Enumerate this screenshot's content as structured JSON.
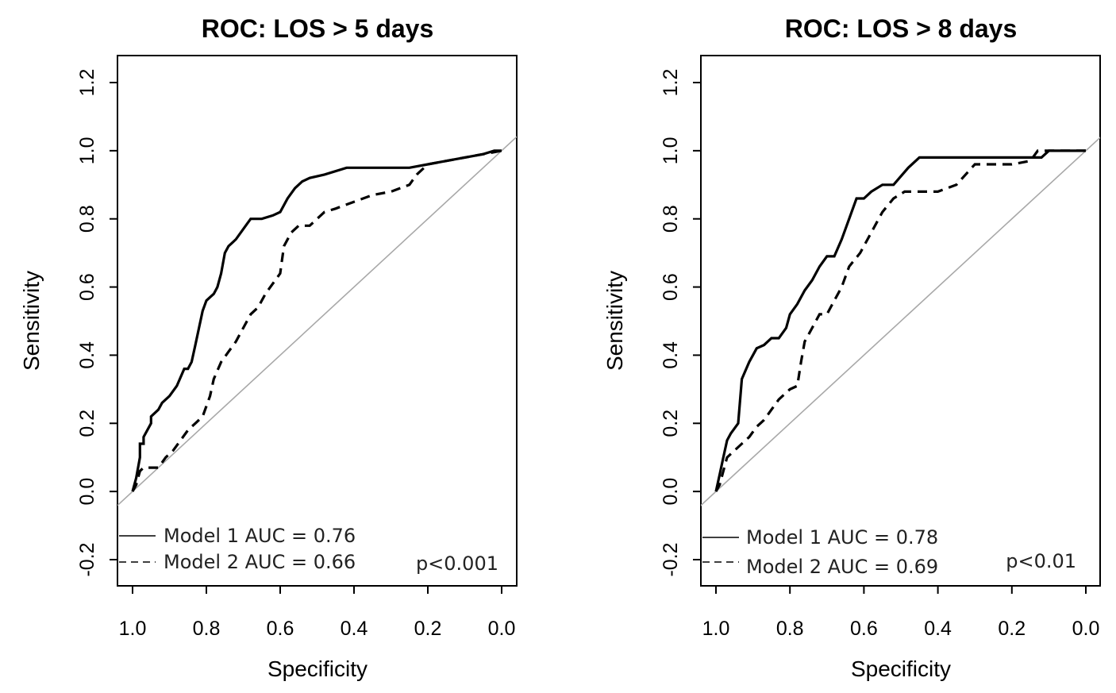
{
  "chart_data": [
    {
      "type": "line",
      "title": "ROC: LOS > 5 days",
      "xlabel": "Specificity",
      "ylabel": "Sensitivity",
      "xlim": [
        1.0,
        0.0
      ],
      "ylim": [
        -0.2,
        1.2
      ],
      "xticks": [
        "1.0",
        "0.8",
        "0.6",
        "0.4",
        "0.2",
        "0.0"
      ],
      "yticks": [
        "-0.2",
        "0.0",
        "0.2",
        "0.4",
        "0.6",
        "0.8",
        "1.0",
        "1.2"
      ],
      "reference_line": {
        "from": [
          1.0,
          0.0
        ],
        "to": [
          0.0,
          1.0
        ]
      },
      "annotation": "p<0.001",
      "series": [
        {
          "name": "Model 1 AUC = 0.76",
          "style": "solid",
          "x": [
            1.0,
            0.99,
            0.98,
            0.98,
            0.97,
            0.97,
            0.95,
            0.95,
            0.93,
            0.92,
            0.9,
            0.88,
            0.86,
            0.85,
            0.84,
            0.83,
            0.82,
            0.81,
            0.8,
            0.79,
            0.78,
            0.77,
            0.76,
            0.75,
            0.74,
            0.73,
            0.72,
            0.7,
            0.68,
            0.66,
            0.65,
            0.62,
            0.6,
            0.58,
            0.56,
            0.54,
            0.52,
            0.48,
            0.42,
            0.36,
            0.3,
            0.25,
            0.2,
            0.15,
            0.1,
            0.05,
            0.02,
            0.0
          ],
          "y": [
            0.0,
            0.04,
            0.1,
            0.14,
            0.14,
            0.16,
            0.2,
            0.22,
            0.24,
            0.26,
            0.28,
            0.31,
            0.36,
            0.36,
            0.38,
            0.43,
            0.48,
            0.53,
            0.56,
            0.57,
            0.58,
            0.6,
            0.64,
            0.7,
            0.72,
            0.73,
            0.74,
            0.77,
            0.8,
            0.8,
            0.8,
            0.81,
            0.82,
            0.86,
            0.89,
            0.91,
            0.92,
            0.93,
            0.95,
            0.95,
            0.95,
            0.95,
            0.96,
            0.97,
            0.98,
            0.99,
            1.0,
            1.0
          ]
        },
        {
          "name": "Model 2 AUC = 0.66",
          "style": "dashed",
          "x": [
            1.0,
            0.99,
            0.98,
            0.97,
            0.95,
            0.93,
            0.91,
            0.89,
            0.87,
            0.85,
            0.83,
            0.81,
            0.79,
            0.78,
            0.76,
            0.74,
            0.72,
            0.7,
            0.68,
            0.66,
            0.64,
            0.62,
            0.6,
            0.59,
            0.57,
            0.55,
            0.52,
            0.5,
            0.48,
            0.45,
            0.4,
            0.35,
            0.3,
            0.25,
            0.23,
            0.2,
            0.15,
            0.1,
            0.05,
            0.0
          ],
          "y": [
            0.0,
            0.02,
            0.06,
            0.07,
            0.07,
            0.07,
            0.1,
            0.12,
            0.15,
            0.18,
            0.2,
            0.22,
            0.28,
            0.33,
            0.38,
            0.41,
            0.44,
            0.48,
            0.52,
            0.54,
            0.58,
            0.61,
            0.64,
            0.72,
            0.76,
            0.78,
            0.78,
            0.8,
            0.82,
            0.83,
            0.85,
            0.87,
            0.88,
            0.9,
            0.93,
            0.96,
            0.97,
            0.98,
            0.99,
            1.0
          ]
        }
      ]
    },
    {
      "type": "line",
      "title": "ROC: LOS > 8 days",
      "xlabel": "Specificity",
      "ylabel": "Sensitivity",
      "xlim": [
        1.0,
        0.0
      ],
      "ylim": [
        -0.2,
        1.2
      ],
      "xticks": [
        "1.0",
        "0.8",
        "0.6",
        "0.4",
        "0.2",
        "0.0"
      ],
      "yticks": [
        "-0.2",
        "0.0",
        "0.2",
        "0.4",
        "0.6",
        "0.8",
        "1.0",
        "1.2"
      ],
      "reference_line": {
        "from": [
          1.0,
          0.0
        ],
        "to": [
          0.0,
          1.0
        ]
      },
      "annotation": "p<0.01",
      "series": [
        {
          "name": "Model 1 AUC = 0.78",
          "style": "solid",
          "x": [
            1.0,
            0.99,
            0.98,
            0.97,
            0.96,
            0.94,
            0.93,
            0.91,
            0.89,
            0.87,
            0.85,
            0.83,
            0.81,
            0.8,
            0.78,
            0.76,
            0.74,
            0.72,
            0.7,
            0.68,
            0.66,
            0.64,
            0.62,
            0.6,
            0.58,
            0.55,
            0.52,
            0.48,
            0.45,
            0.4,
            0.3,
            0.2,
            0.12,
            0.1,
            0.0
          ],
          "y": [
            0.0,
            0.05,
            0.1,
            0.15,
            0.17,
            0.2,
            0.33,
            0.38,
            0.42,
            0.43,
            0.45,
            0.45,
            0.48,
            0.52,
            0.55,
            0.59,
            0.62,
            0.66,
            0.69,
            0.69,
            0.74,
            0.8,
            0.86,
            0.86,
            0.88,
            0.9,
            0.9,
            0.95,
            0.98,
            0.98,
            0.98,
            0.98,
            0.98,
            1.0,
            1.0
          ]
        },
        {
          "name": "Model 2 AUC = 0.69",
          "style": "dashed",
          "x": [
            1.0,
            0.99,
            0.98,
            0.97,
            0.95,
            0.93,
            0.91,
            0.89,
            0.87,
            0.85,
            0.83,
            0.8,
            0.78,
            0.77,
            0.76,
            0.74,
            0.72,
            0.7,
            0.68,
            0.66,
            0.64,
            0.61,
            0.58,
            0.55,
            0.52,
            0.49,
            0.45,
            0.4,
            0.35,
            0.3,
            0.25,
            0.2,
            0.15,
            0.13,
            0.0
          ],
          "y": [
            0.0,
            0.02,
            0.06,
            0.1,
            0.12,
            0.14,
            0.16,
            0.19,
            0.21,
            0.24,
            0.27,
            0.3,
            0.31,
            0.38,
            0.44,
            0.48,
            0.52,
            0.52,
            0.56,
            0.6,
            0.66,
            0.7,
            0.76,
            0.82,
            0.86,
            0.88,
            0.88,
            0.88,
            0.9,
            0.96,
            0.96,
            0.96,
            0.97,
            1.0,
            1.0
          ]
        }
      ]
    }
  ]
}
